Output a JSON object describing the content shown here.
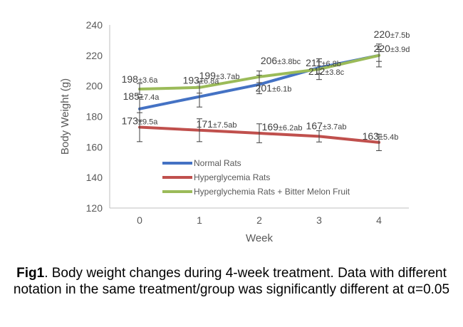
{
  "chart_data": {
    "type": "line",
    "xlabel": "Week",
    "ylabel": "Body Weight (g)",
    "ylim": [
      120,
      240
    ],
    "yticks": [
      120,
      140,
      160,
      180,
      200,
      220,
      240
    ],
    "x": [
      0,
      1,
      2,
      3,
      4
    ],
    "grid": false,
    "legend_position": "bottom-left",
    "series": [
      {
        "name": "Normal Rats",
        "color": "#4472C4",
        "values": [
          185,
          193,
          201,
          212,
          220
        ],
        "errors": [
          7.4,
          6.8,
          6.1,
          3.8,
          3.9
        ],
        "labels": [
          "185±7.4a",
          "193±6.8a",
          "201±6.1b",
          "212±3.8c",
          "220±3.9d"
        ]
      },
      {
        "name": "Hyperglycemia Rats",
        "color": "#C0504D",
        "values": [
          173,
          171,
          169,
          167,
          163
        ],
        "errors": [
          9.5,
          7.5,
          6.2,
          3.7,
          5.4
        ],
        "labels": [
          "173±9.5a",
          "171±7.5ab",
          "169±6.2ab",
          "167±3.7ab",
          "163±5.4b"
        ]
      },
      {
        "name": "Hyperglychemia Rats + Bitter Melon Fruit",
        "color": "#9BBB59",
        "values": [
          198,
          199,
          206,
          211,
          220
        ],
        "errors": [
          3.6,
          3.7,
          3.8,
          6.8,
          7.5
        ],
        "labels": [
          "198±3.6a",
          "199±3.7ab",
          "206±3.8bc",
          "211±6.8b",
          "220±7.5b"
        ]
      }
    ]
  },
  "caption": {
    "fig_label": "Fig1",
    "text": ". Body weight changes during 4-week treatment.  Data with different notation in the same treatment/group was significantly different at α=0.05"
  }
}
